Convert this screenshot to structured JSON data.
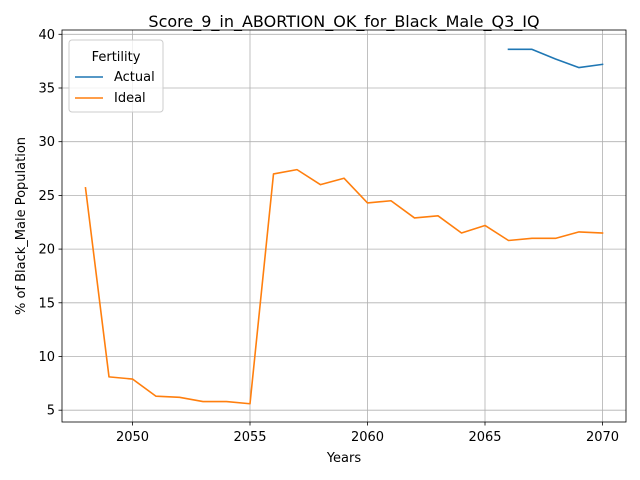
{
  "chart_data": {
    "type": "line",
    "title": "Score_9_in_ABORTION_OK_for_Black_Male_Q3_IQ",
    "xlabel": "Years",
    "ylabel": "% of Black_Male Population",
    "xlim": [
      2047,
      2071
    ],
    "ylim": [
      3.9,
      40.4
    ],
    "xticks": [
      2050,
      2055,
      2060,
      2065,
      2070
    ],
    "yticks": [
      5,
      10,
      15,
      20,
      25,
      30,
      35,
      40
    ],
    "grid": true,
    "legend": {
      "title": "Fertility",
      "placement": "top-left"
    },
    "series": [
      {
        "name": "Actual",
        "color": "#1f77b4",
        "x": [
          2066,
          2067,
          2068,
          2069,
          2070
        ],
        "y": [
          38.6,
          38.6,
          37.7,
          36.9,
          37.2
        ]
      },
      {
        "name": "Ideal",
        "color": "#ff7f0e",
        "x": [
          2048,
          2049,
          2050,
          2051,
          2052,
          2053,
          2054,
          2055,
          2056,
          2057,
          2058,
          2059,
          2060,
          2061,
          2062,
          2063,
          2064,
          2065,
          2066,
          2067,
          2068,
          2069,
          2070
        ],
        "y": [
          25.7,
          8.1,
          7.9,
          6.3,
          6.2,
          5.8,
          5.8,
          5.6,
          27.0,
          27.4,
          26.0,
          26.6,
          24.3,
          24.5,
          22.9,
          23.1,
          21.5,
          22.2,
          20.8,
          21.0,
          21.0,
          21.6,
          21.5
        ]
      }
    ]
  }
}
